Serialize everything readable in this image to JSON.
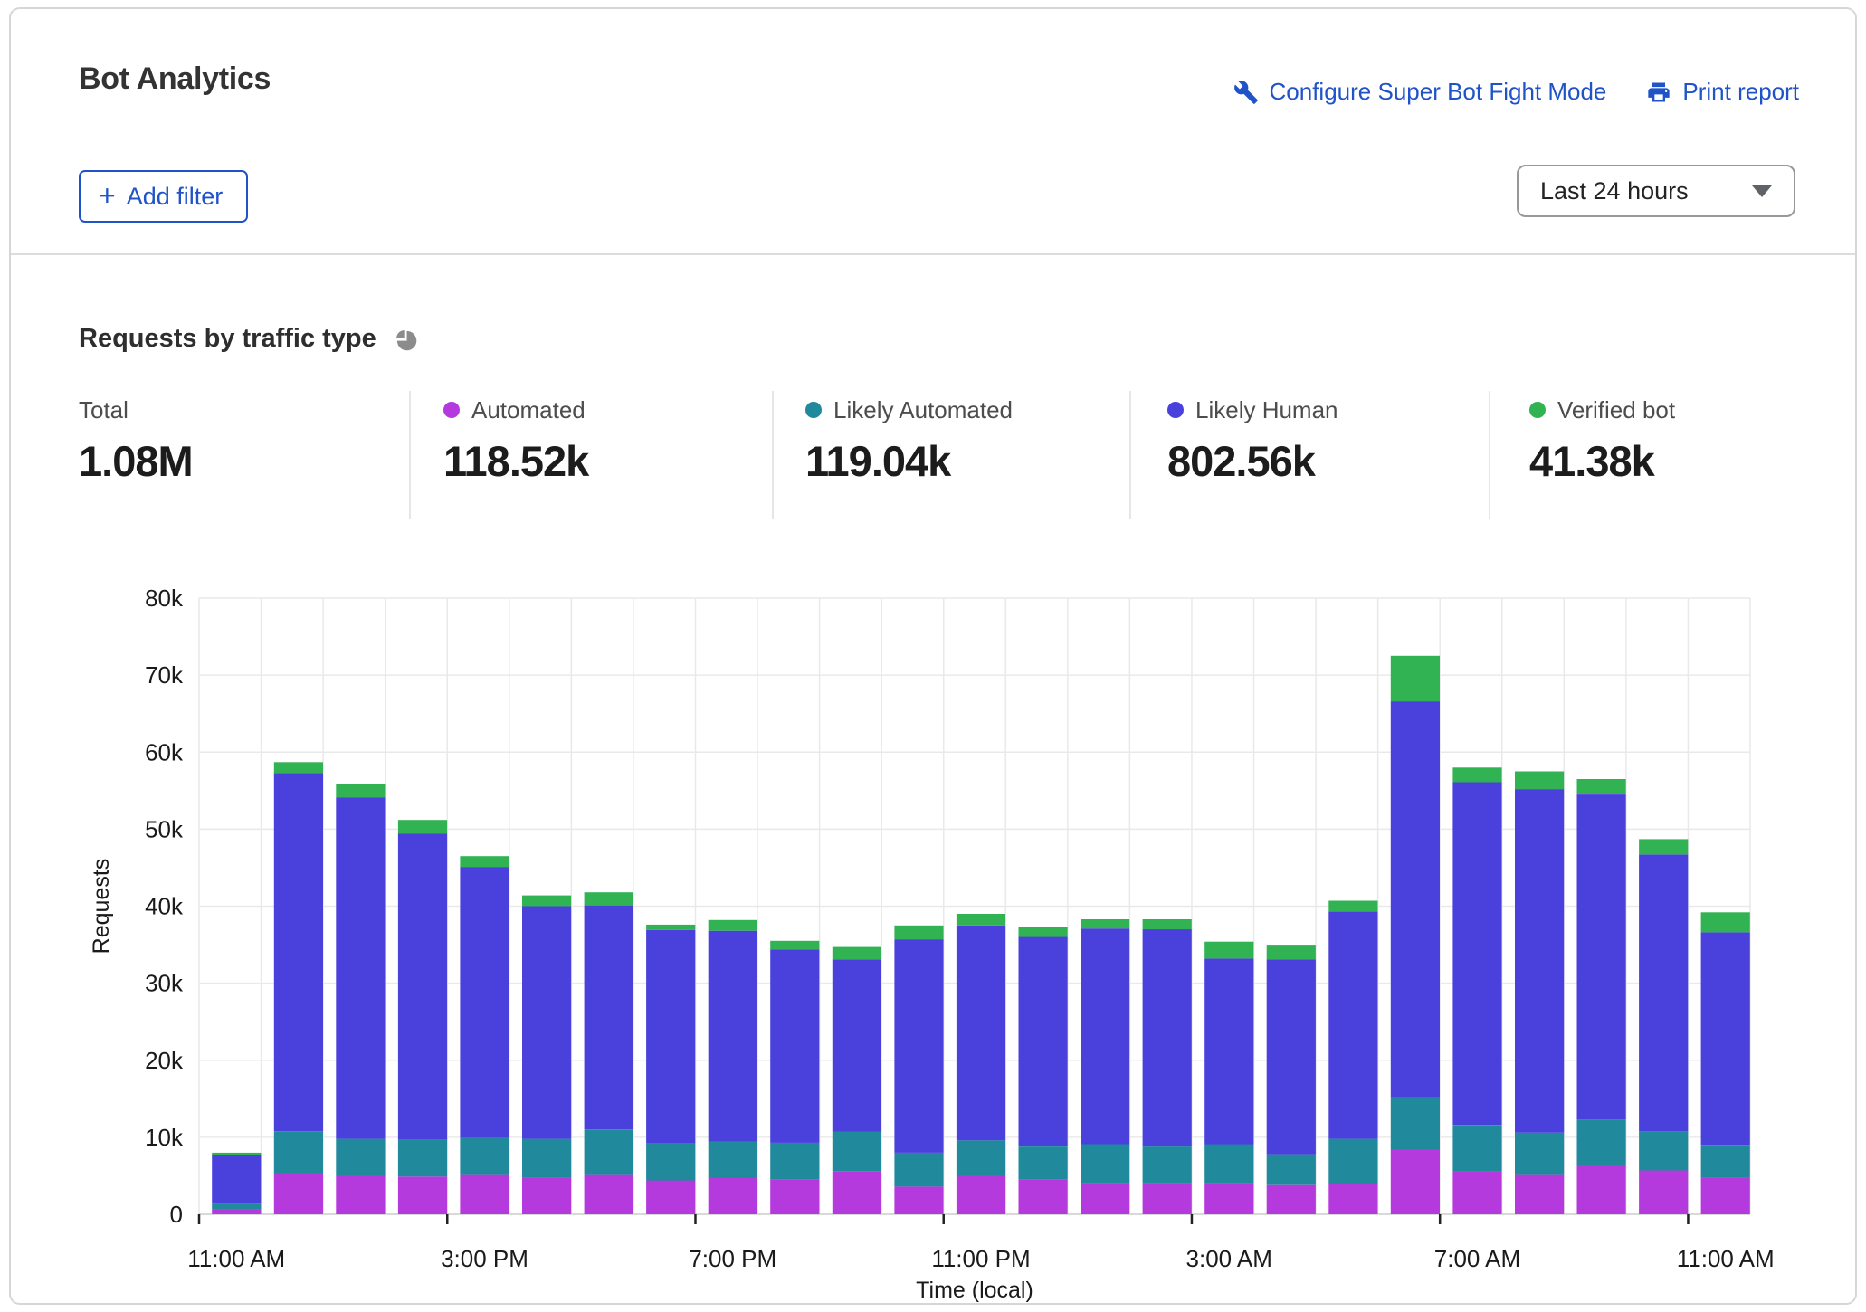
{
  "header": {
    "title": "Bot Analytics",
    "configure_link_label": "Configure Super Bot Fight Mode",
    "configure_link_icon": "wrench-icon",
    "print_link_label": "Print report",
    "print_link_icon": "printer-icon",
    "add_filter_label": "Add filter",
    "add_filter_icon": "plus-icon",
    "time_range_value": "Last 24 hours",
    "time_range_icon": "chevron-down-icon",
    "link_color": "#2053c8"
  },
  "section": {
    "title": "Requests by traffic type",
    "icon": "pie-chart-icon"
  },
  "stats": [
    {
      "label": "Total",
      "value": "1.08M",
      "color": null
    },
    {
      "label": "Automated",
      "value": "118.52k",
      "color": "#b43add"
    },
    {
      "label": "Likely Automated",
      "value": "119.04k",
      "color": "#20899c"
    },
    {
      "label": "Likely Human",
      "value": "802.56k",
      "color": "#4a40dc"
    },
    {
      "label": "Verified bot",
      "value": "41.38k",
      "color": "#32b353"
    }
  ],
  "chart_data": {
    "type": "bar",
    "stacked": true,
    "title": "Requests by traffic type",
    "xlabel": "Time (local)",
    "ylabel": "Requests",
    "unit": "thousands of requests per hour",
    "ylim_k": [
      0,
      80
    ],
    "y_ticks": [
      "0",
      "10k",
      "20k",
      "30k",
      "40k",
      "50k",
      "60k",
      "70k",
      "80k"
    ],
    "grid": true,
    "legend_position": "top-stat-cards",
    "x_tick_every": 4,
    "x_tick_labels": [
      "11:00 AM",
      "3:00 PM",
      "7:00 PM",
      "11:00 PM",
      "3:00 AM",
      "7:00 AM",
      "11:00 AM"
    ],
    "categories": [
      "11:00 AM",
      "12:00 PM",
      "1:00 PM",
      "2:00 PM",
      "3:00 PM",
      "4:00 PM",
      "5:00 PM",
      "6:00 PM",
      "7:00 PM",
      "8:00 PM",
      "9:00 PM",
      "10:00 PM",
      "11:00 PM",
      "12:00 AM",
      "1:00 AM",
      "2:00 AM",
      "3:00 AM",
      "4:00 AM",
      "5:00 AM",
      "6:00 AM",
      "7:00 AM",
      "8:00 AM",
      "9:00 AM",
      "10:00 AM",
      "11:00 AM"
    ],
    "series": [
      {
        "name": "Automated",
        "color": "#b43add",
        "values_k": [
          0.6,
          5.4,
          5.0,
          4.9,
          5.1,
          4.8,
          5.1,
          4.4,
          4.7,
          4.5,
          5.6,
          3.6,
          5.0,
          4.5,
          4.1,
          4.1,
          4.0,
          3.8,
          4.0,
          8.4,
          5.6,
          5.1,
          6.4,
          5.7,
          4.8
        ]
      },
      {
        "name": "Likely Automated",
        "color": "#20899c",
        "values_k": [
          0.8,
          5.4,
          4.8,
          4.8,
          4.8,
          5.0,
          5.9,
          4.8,
          4.7,
          4.8,
          5.1,
          4.4,
          4.6,
          4.3,
          5.0,
          4.7,
          5.1,
          4.0,
          5.8,
          6.8,
          6.0,
          5.5,
          5.9,
          5.1,
          4.2
        ]
      },
      {
        "name": "Likely Human",
        "color": "#4a40dc",
        "values_k": [
          6.3,
          46.5,
          44.3,
          39.7,
          35.2,
          30.2,
          29.1,
          27.7,
          27.4,
          25.1,
          22.4,
          27.7,
          27.9,
          27.2,
          28.0,
          28.2,
          24.1,
          25.3,
          29.5,
          51.4,
          44.5,
          44.6,
          42.2,
          35.9,
          27.6
        ]
      },
      {
        "name": "Verified bot",
        "color": "#32b353",
        "values_k": [
          0.3,
          1.4,
          1.8,
          1.8,
          1.4,
          1.4,
          1.7,
          0.7,
          1.4,
          1.1,
          1.6,
          1.8,
          1.5,
          1.3,
          1.2,
          1.3,
          2.2,
          1.9,
          1.4,
          5.9,
          1.9,
          2.3,
          2.0,
          2.0,
          2.6
        ]
      }
    ]
  }
}
